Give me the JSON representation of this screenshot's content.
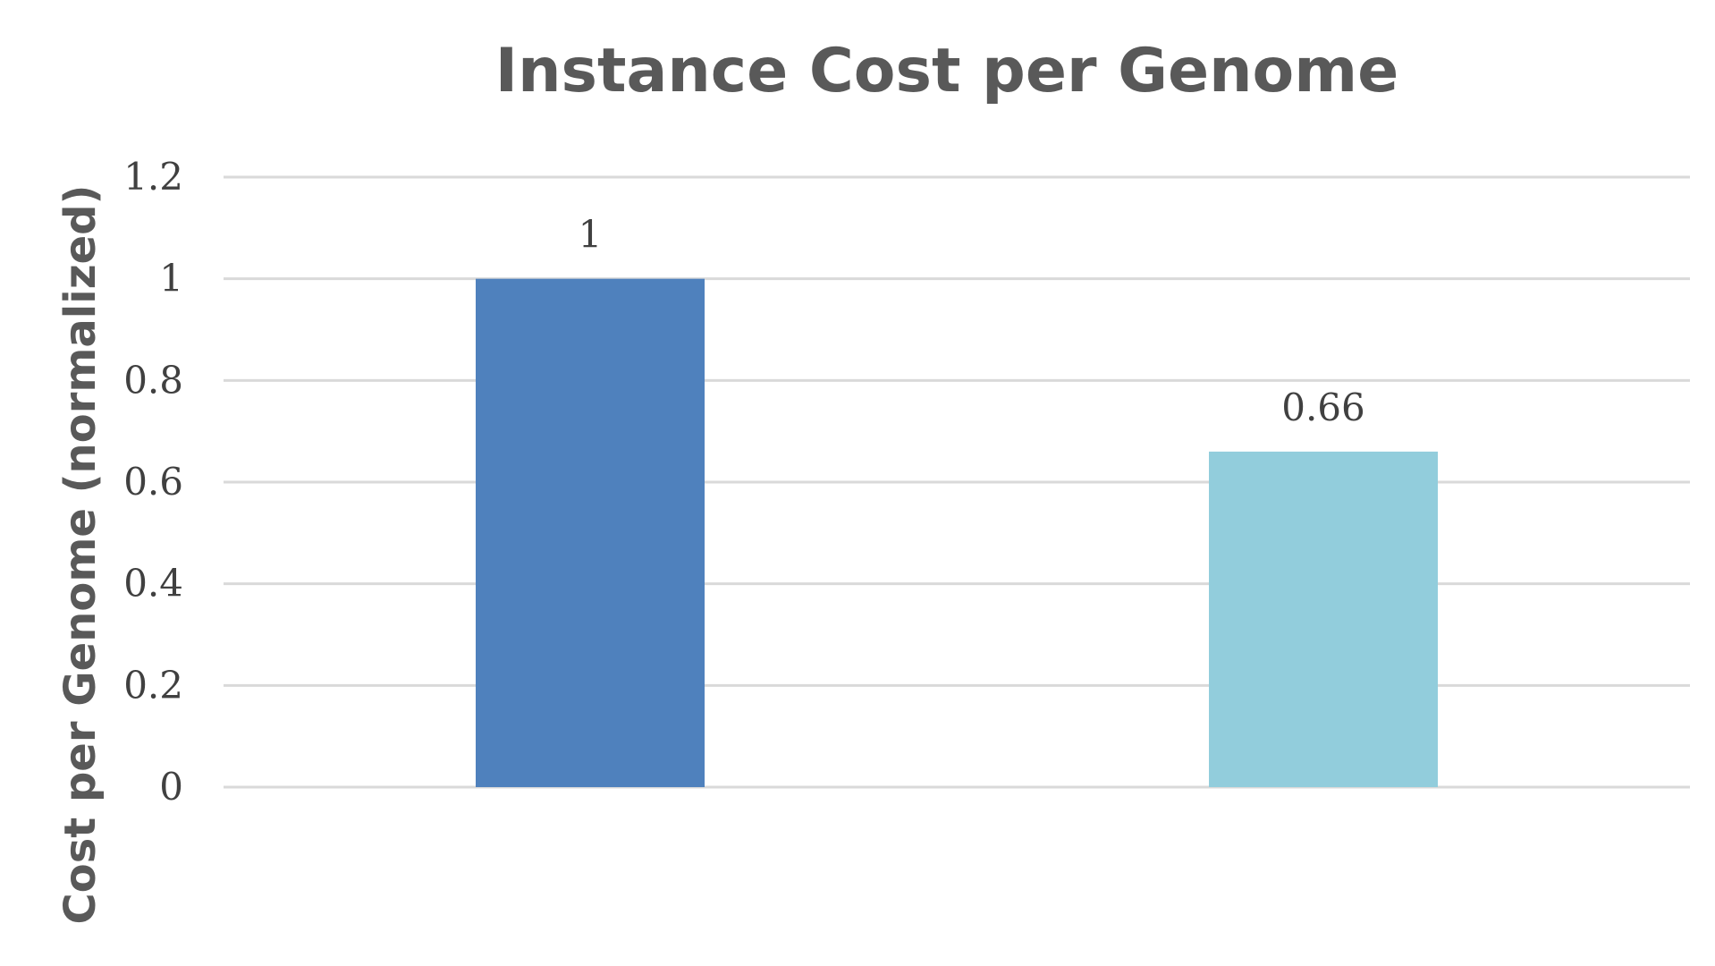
{
  "chart_data": {
    "type": "bar",
    "title": "Instance Cost per Genome",
    "xlabel": "",
    "ylabel": "Cost per Genome (normalized)",
    "categories": [
      "",
      ""
    ],
    "values": [
      1,
      0.66
    ],
    "data_labels": [
      "1",
      "0.66"
    ],
    "bar_colors": [
      "#4f81bd",
      "#92cddc"
    ],
    "ylim": [
      0,
      1.2
    ],
    "yticks": [
      0,
      0.2,
      0.4,
      0.6,
      0.8,
      1,
      1.2
    ],
    "ytick_labels": [
      "0",
      "0.2",
      "0.4",
      "0.6",
      "0.8",
      "1",
      "1.2"
    ],
    "grid": true,
    "legend": "none"
  },
  "colors": {
    "gridline": "#d9d9d9",
    "tick_text": "#404040",
    "title_text": "#595959"
  }
}
